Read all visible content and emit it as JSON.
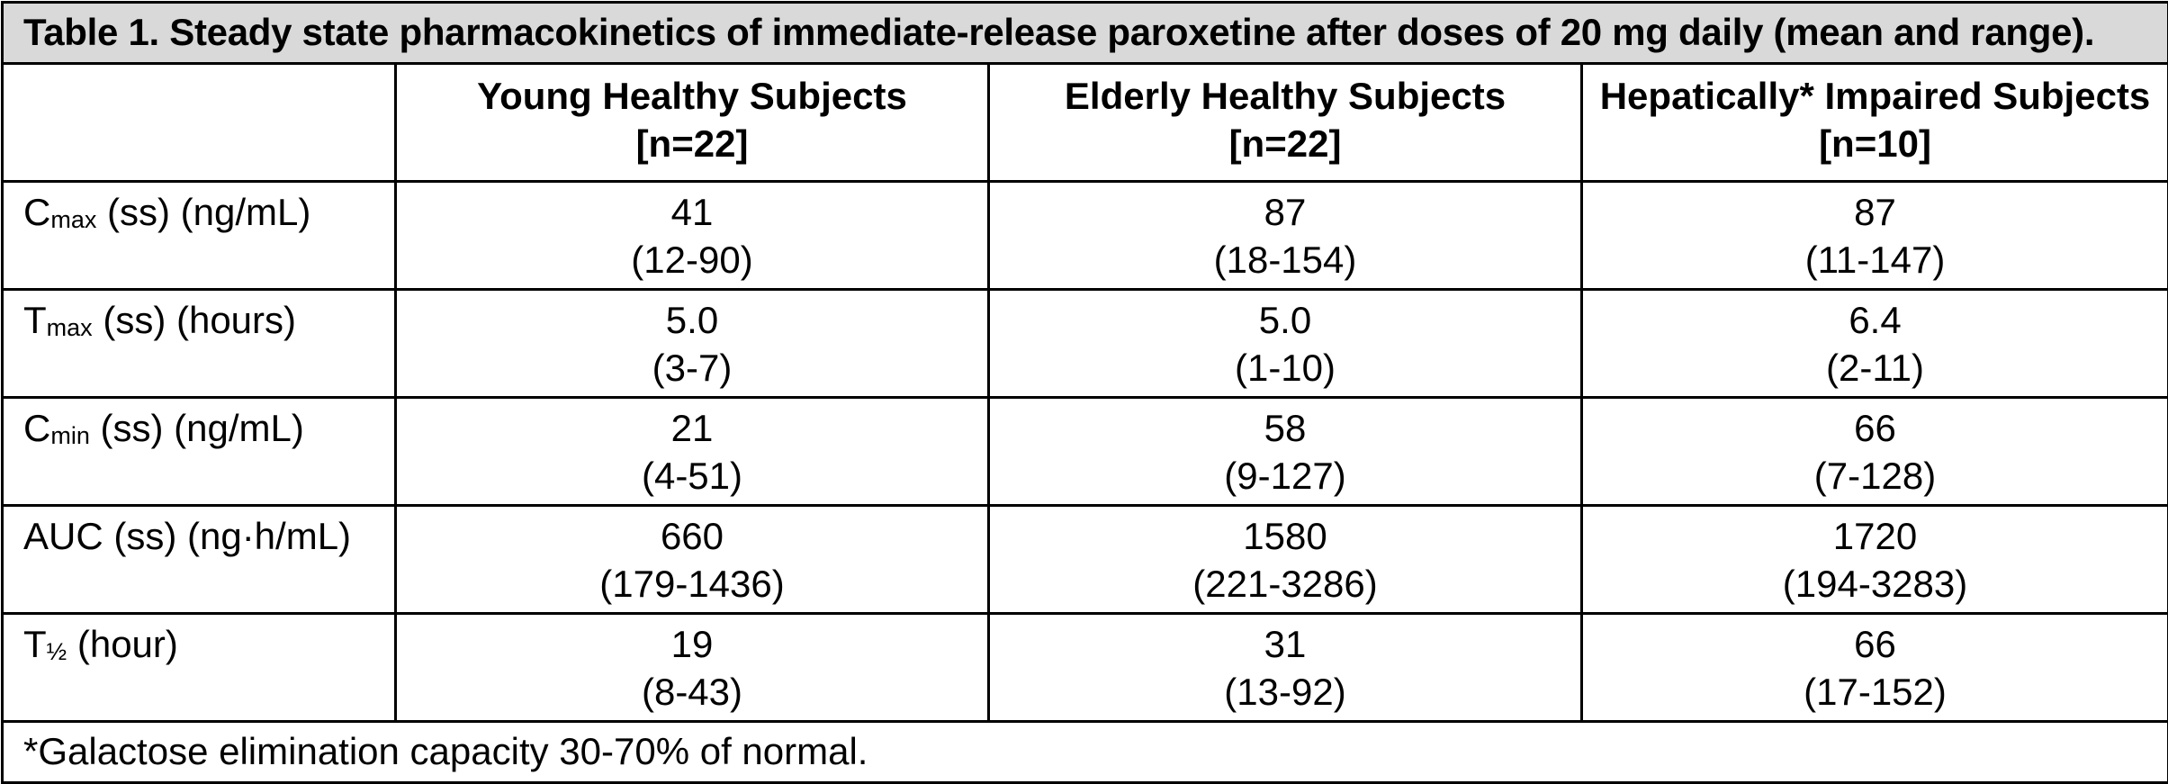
{
  "table": {
    "caption": "Table 1. Steady state pharmacokinetics of immediate-release paroxetine after doses of 20 mg daily (mean and range).",
    "columns": [
      {
        "title": "Young Healthy Subjects",
        "n": "[n=22]"
      },
      {
        "title": "Elderly Healthy Subjects",
        "n": "[n=22]"
      },
      {
        "title": "Hepatically* Impaired Subjects",
        "n": "[n=10]"
      }
    ],
    "rows": [
      {
        "label_main": "C",
        "label_sub": "max",
        "label_rest": " (ss) (ng/mL)",
        "cells": [
          {
            "mean": "41",
            "range": "(12-90)"
          },
          {
            "mean": "87",
            "range": "(18-154)"
          },
          {
            "mean": "87",
            "range": "(11-147)"
          }
        ]
      },
      {
        "label_main": "T",
        "label_sub": "max",
        "label_rest": " (ss) (hours)",
        "cells": [
          {
            "mean": "5.0",
            "range": "(3-7)"
          },
          {
            "mean": "5.0",
            "range": "(1-10)"
          },
          {
            "mean": "6.4",
            "range": "(2-11)"
          }
        ]
      },
      {
        "label_main": "C",
        "label_sub": "min",
        "label_rest": " (ss) (ng/mL)",
        "cells": [
          {
            "mean": "21",
            "range": "(4-51)"
          },
          {
            "mean": "58",
            "range": "(9-127)"
          },
          {
            "mean": "66",
            "range": "(7-128)"
          }
        ]
      },
      {
        "label_main": "AUC (ss) (ng·h/mL)",
        "label_sub": "",
        "label_rest": "",
        "cells": [
          {
            "mean": "660",
            "range": "(179-1436)"
          },
          {
            "mean": "1580",
            "range": "(221-3286)"
          },
          {
            "mean": "1720",
            "range": "(194-3283)"
          }
        ]
      },
      {
        "label_main": "T",
        "label_sub": "½",
        "label_rest": " (hour)",
        "cells": [
          {
            "mean": "19",
            "range": "(8-43)"
          },
          {
            "mean": "31",
            "range": "(13-92)"
          },
          {
            "mean": "66",
            "range": "(17-152)"
          }
        ]
      }
    ],
    "footnote": "*Galactose elimination capacity 30-70% of normal."
  }
}
